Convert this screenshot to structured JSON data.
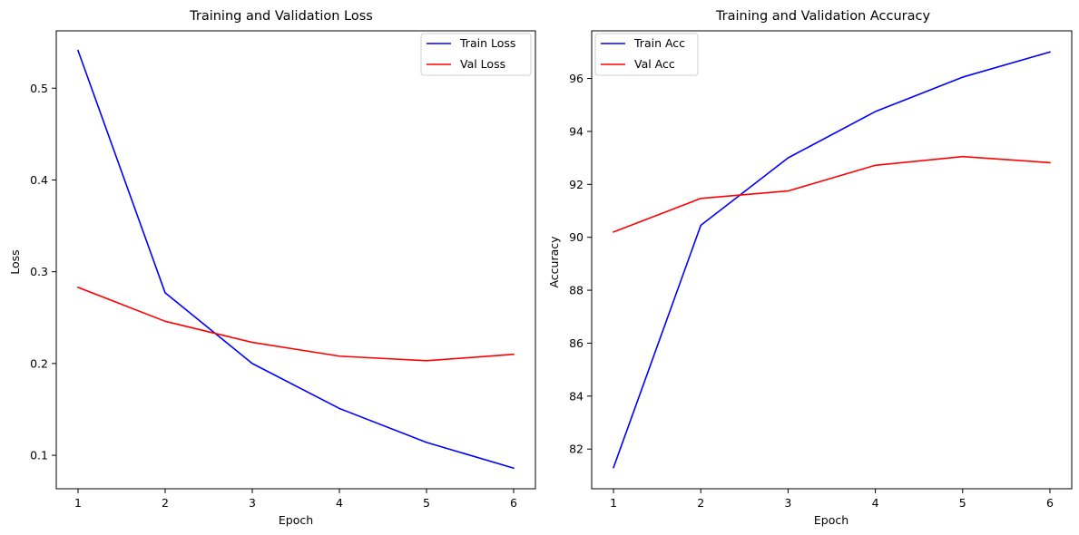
{
  "chart_data": [
    {
      "type": "line",
      "title": "Training and Validation Loss",
      "xlabel": "Epoch",
      "ylabel": "Loss",
      "xlim": [
        0.75,
        6.25
      ],
      "ylim": [
        0.0635,
        0.5625
      ],
      "xticks": [
        1,
        2,
        3,
        4,
        5,
        6
      ],
      "yticks": [
        0.1,
        0.2,
        0.3,
        0.4,
        0.5
      ],
      "ytick_labels": [
        "0.1",
        "0.2",
        "0.3",
        "0.4",
        "0.5"
      ],
      "grid": false,
      "legend_position": "top-right",
      "x": [
        1,
        2,
        3,
        4,
        5,
        6
      ],
      "series": [
        {
          "name": "Train Loss",
          "color": "#0000ff",
          "values": [
            0.541,
            0.277,
            0.2,
            0.151,
            0.114,
            0.086
          ]
        },
        {
          "name": "Val Loss",
          "color": "#ff0000",
          "values": [
            0.283,
            0.246,
            0.223,
            0.208,
            0.203,
            0.21
          ]
        }
      ]
    },
    {
      "type": "line",
      "title": "Training and Validation Accuracy",
      "xlabel": "Epoch",
      "ylabel": "Accuracy",
      "xlim": [
        0.75,
        6.25
      ],
      "ylim": [
        80.5,
        97.8
      ],
      "xticks": [
        1,
        2,
        3,
        4,
        5,
        6
      ],
      "yticks": [
        82,
        84,
        86,
        88,
        90,
        92,
        94,
        96
      ],
      "ytick_labels": [
        "82",
        "84",
        "86",
        "88",
        "90",
        "92",
        "94",
        "96"
      ],
      "grid": false,
      "legend_position": "top-left",
      "x": [
        1,
        2,
        3,
        4,
        5,
        6
      ],
      "series": [
        {
          "name": "Train Acc",
          "color": "#0000ff",
          "values": [
            81.3,
            90.45,
            93.0,
            94.75,
            96.05,
            97.0
          ]
        },
        {
          "name": "Val Acc",
          "color": "#ff0000",
          "values": [
            90.2,
            91.47,
            91.75,
            92.72,
            93.05,
            92.82
          ]
        }
      ]
    }
  ]
}
